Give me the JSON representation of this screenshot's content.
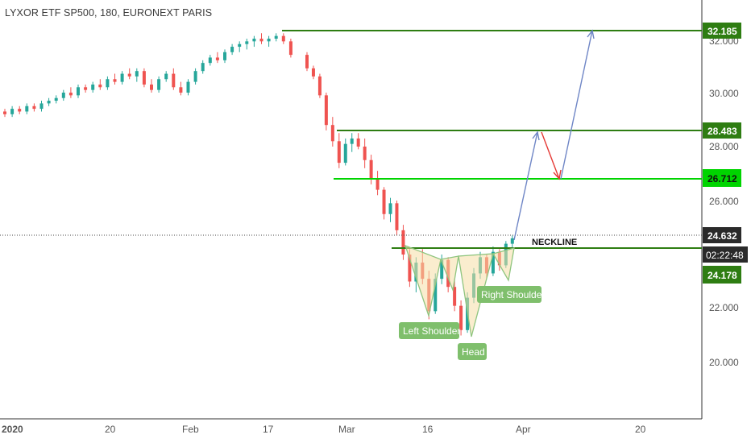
{
  "title": "LYXOR ETF SP500, 180, EURONEXT PARIS",
  "chart_data": {
    "type": "candlestick",
    "title": "LYXOR ETF SP500, 180, EURONEXT PARIS",
    "y_ticks": [
      "32.000",
      "30.000",
      "28.000",
      "26.000",
      "22.000",
      "20.000"
    ],
    "x_ticks": [
      "2020",
      "20",
      "Feb",
      "17",
      "Mar",
      "16",
      "Apr",
      "20"
    ],
    "ylim": [
      18.0,
      33.0
    ],
    "colors": {
      "up": "#26a69a",
      "down": "#ef5350",
      "level_dark": "#2e7d12",
      "level_bright": "#00d400",
      "label_green": "#7fbf6c",
      "projection": "#6f86c6",
      "pullback": "#e53935"
    },
    "price_line": 24.632,
    "levels": [
      {
        "value": "32.185",
        "color": "#2e7d12"
      },
      {
        "value": "28.483",
        "color": "#2e7d12"
      },
      {
        "value": "26.712",
        "color": "#00d400"
      }
    ],
    "badges": [
      {
        "value": "24.632",
        "kind": "last-price"
      },
      {
        "value": "02:22:48",
        "kind": "countdown"
      },
      {
        "value": "24.178",
        "kind": "neckline"
      }
    ],
    "neckline": {
      "label": "NECKLINE",
      "value": 24.178
    },
    "annotations": [
      "Left Shoulder",
      "Head",
      "Right Shoulder"
    ],
    "candles": [
      [
        29.3,
        29.4,
        29.1,
        29.2
      ],
      [
        29.2,
        29.5,
        29.1,
        29.4
      ],
      [
        29.4,
        29.5,
        29.2,
        29.3
      ],
      [
        29.3,
        29.6,
        29.2,
        29.5
      ],
      [
        29.5,
        29.6,
        29.3,
        29.4
      ],
      [
        29.4,
        29.7,
        29.3,
        29.6
      ],
      [
        29.6,
        29.8,
        29.5,
        29.7
      ],
      [
        29.7,
        29.9,
        29.6,
        29.8
      ],
      [
        29.8,
        30.1,
        29.7,
        30.0
      ],
      [
        30.0,
        30.2,
        29.8,
        29.9
      ],
      [
        29.9,
        30.3,
        29.8,
        30.2
      ],
      [
        30.2,
        30.3,
        30.0,
        30.1
      ],
      [
        30.1,
        30.4,
        30.0,
        30.3
      ],
      [
        30.3,
        30.5,
        30.1,
        30.2
      ],
      [
        30.2,
        30.6,
        30.1,
        30.5
      ],
      [
        30.5,
        30.7,
        30.3,
        30.4
      ],
      [
        30.4,
        30.8,
        30.3,
        30.7
      ],
      [
        30.7,
        30.9,
        30.5,
        30.6
      ],
      [
        30.6,
        30.9,
        30.4,
        30.8
      ],
      [
        30.8,
        30.9,
        30.2,
        30.3
      ],
      [
        30.3,
        30.5,
        30.0,
        30.1
      ],
      [
        30.1,
        30.6,
        30.0,
        30.5
      ],
      [
        30.5,
        30.8,
        30.4,
        30.7
      ],
      [
        30.7,
        30.9,
        30.1,
        30.2
      ],
      [
        30.2,
        30.4,
        29.9,
        30.0
      ],
      [
        30.0,
        30.5,
        29.9,
        30.4
      ],
      [
        30.4,
        30.9,
        30.3,
        30.8
      ],
      [
        30.8,
        31.2,
        30.7,
        31.1
      ],
      [
        31.1,
        31.4,
        31.0,
        31.3
      ],
      [
        31.3,
        31.5,
        31.1,
        31.2
      ],
      [
        31.2,
        31.6,
        31.1,
        31.5
      ],
      [
        31.5,
        31.8,
        31.4,
        31.7
      ],
      [
        31.7,
        31.9,
        31.5,
        31.8
      ],
      [
        31.8,
        32.0,
        31.6,
        31.9
      ],
      [
        31.9,
        32.1,
        31.7,
        32.0
      ],
      [
        32.0,
        32.2,
        31.8,
        31.9
      ],
      [
        31.9,
        32.1,
        31.7,
        32.0
      ],
      [
        32.0,
        32.2,
        31.9,
        32.1
      ],
      [
        32.1,
        32.2,
        31.8,
        31.9
      ],
      [
        31.9,
        32.0,
        31.3,
        31.4
      ],
      [
        31.4,
        31.5,
        30.8,
        30.9
      ],
      [
        30.9,
        31.0,
        30.5,
        30.6
      ],
      [
        30.6,
        30.7,
        29.8,
        29.9
      ],
      [
        29.9,
        30.0,
        28.6,
        28.8
      ],
      [
        28.8,
        29.1,
        28.0,
        28.2
      ],
      [
        28.2,
        28.5,
        27.2,
        27.4
      ],
      [
        27.4,
        28.3,
        27.3,
        28.1
      ],
      [
        28.1,
        28.5,
        27.8,
        28.3
      ],
      [
        28.3,
        28.5,
        27.9,
        28.0
      ],
      [
        28.0,
        28.3,
        27.2,
        27.5
      ],
      [
        27.5,
        27.7,
        26.6,
        26.8
      ],
      [
        26.8,
        27.1,
        26.2,
        26.4
      ],
      [
        26.4,
        26.5,
        25.3,
        25.5
      ],
      [
        25.5,
        26.1,
        25.2,
        25.9
      ],
      [
        25.9,
        26.0,
        24.7,
        24.9
      ],
      [
        24.9,
        25.1,
        23.8,
        24.0
      ],
      [
        24.0,
        24.2,
        22.8,
        23.0
      ],
      [
        23.0,
        23.9,
        22.6,
        23.7
      ],
      [
        23.7,
        24.2,
        22.9,
        23.1
      ],
      [
        23.1,
        23.4,
        21.6,
        21.9
      ],
      [
        21.9,
        23.3,
        21.8,
        23.1
      ],
      [
        23.1,
        24.0,
        22.9,
        23.8
      ],
      [
        23.8,
        23.9,
        22.6,
        22.8
      ],
      [
        22.8,
        23.1,
        21.9,
        22.1
      ],
      [
        22.1,
        22.3,
        21.0,
        21.2
      ],
      [
        21.2,
        22.6,
        21.1,
        22.4
      ],
      [
        22.4,
        23.5,
        22.2,
        23.3
      ],
      [
        23.3,
        24.1,
        23.1,
        23.9
      ],
      [
        23.9,
        24.0,
        23.1,
        23.3
      ],
      [
        23.3,
        24.3,
        23.2,
        24.1
      ],
      [
        24.1,
        24.2,
        23.4,
        23.6
      ],
      [
        23.6,
        24.5,
        23.5,
        24.4
      ],
      [
        24.4,
        24.7,
        24.2,
        24.6
      ]
    ]
  }
}
